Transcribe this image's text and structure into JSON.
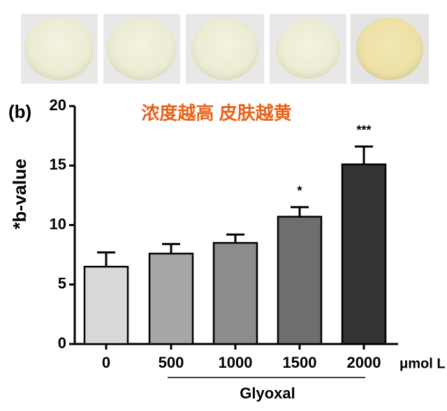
{
  "chart_data": {
    "type": "bar",
    "panel_label": "(b)",
    "title": "浓度越高 皮肤越黄",
    "title_color": "#e8621a",
    "y_label": "*b-value",
    "x_label": "Glyoxal",
    "unit": "μmol L",
    "categories": [
      "0",
      "500",
      "1000",
      "1500",
      "2000"
    ],
    "values": [
      6.5,
      7.6,
      8.5,
      10.7,
      15.1
    ],
    "errors": [
      1.2,
      0.8,
      0.7,
      0.8,
      1.5
    ],
    "colors": [
      "#d9d9d9",
      "#a6a6a6",
      "#8c8c8c",
      "#6e6e6e",
      "#333333"
    ],
    "annotations": [
      null,
      null,
      null,
      "*",
      "***"
    ],
    "ylim": [
      0,
      20
    ],
    "yticks": [
      0,
      5,
      10,
      15,
      20
    ]
  }
}
